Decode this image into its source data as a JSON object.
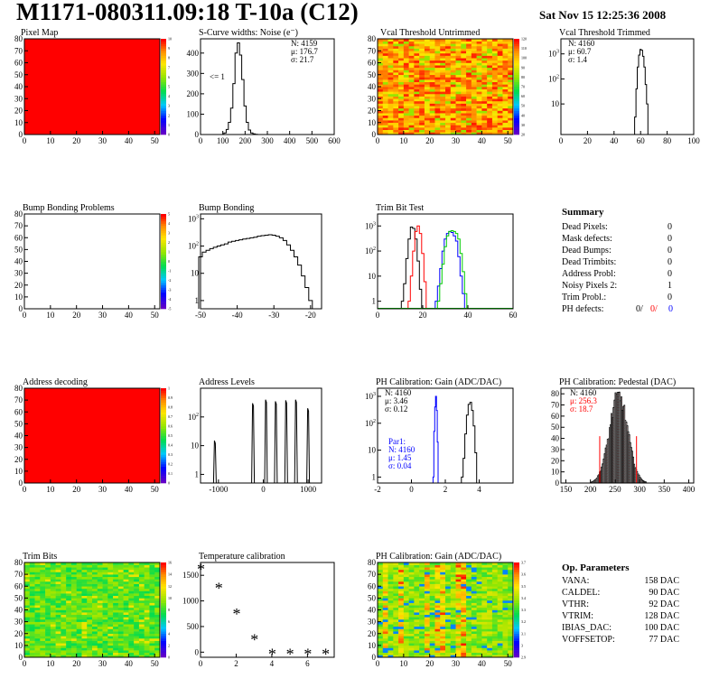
{
  "header": {
    "title": "M1171-080311.09:18 T-10a (C12)",
    "date": "Sat Nov 15 12:25:36 2008"
  },
  "colors": {
    "red": "#ff0000",
    "green": "#00cc00",
    "blue": "#0000ff",
    "black": "#000000",
    "pedestal_fill": "#cc3333"
  },
  "chart_data": [
    {
      "id": "pixel-map",
      "type": "heatmap",
      "title": "Pixel Map",
      "xlim": [
        0,
        52
      ],
      "ylim": [
        0,
        80
      ],
      "xticks": [
        0,
        10,
        20,
        30,
        40,
        50
      ],
      "yticks": [
        0,
        10,
        20,
        30,
        40,
        50,
        60,
        70,
        80
      ],
      "palette": "full-red",
      "zscale": [
        "0",
        "1",
        "2",
        "3",
        "4",
        "5",
        "6",
        "7",
        "8",
        "9",
        "10"
      ]
    },
    {
      "id": "scurve",
      "type": "line",
      "title": "S-Curve widths: Noise (e⁻)",
      "xlim": [
        0,
        600
      ],
      "ylim": [
        0,
        470
      ],
      "xticks": [
        0,
        100,
        200,
        300,
        400,
        500,
        600
      ],
      "yticks": [
        0,
        100,
        200,
        300,
        400
      ],
      "annotation": "<= 1",
      "stats": [
        {
          "label": "N: 4159",
          "color": "#000000"
        },
        {
          "label": "μ: 176.7",
          "color": "#000000"
        },
        {
          "label": "σ: 21.7",
          "color": "#000000"
        }
      ],
      "series": [
        {
          "color": "#000000",
          "x": [
            100,
            110,
            120,
            130,
            140,
            150,
            160,
            170,
            180,
            190,
            200,
            210,
            220,
            230,
            240,
            250,
            260
          ],
          "values": [
            0,
            8,
            25,
            60,
            130,
            250,
            400,
            450,
            390,
            270,
            140,
            60,
            22,
            8,
            3,
            1,
            0
          ]
        }
      ]
    },
    {
      "id": "vcal-untrimmed",
      "type": "heatmap",
      "title": "Vcal Threshold Untrimmed",
      "xlim": [
        0,
        52
      ],
      "ylim": [
        0,
        80
      ],
      "xticks": [
        0,
        10,
        20,
        30,
        40,
        50
      ],
      "yticks": [
        0,
        10,
        20,
        30,
        40,
        50,
        60,
        70,
        80
      ],
      "palette": "orange-noise",
      "zscale": [
        "20",
        "30",
        "40",
        "50",
        "60",
        "70",
        "80",
        "90",
        "100",
        "110",
        "120"
      ]
    },
    {
      "id": "vcal-trimmed",
      "type": "line",
      "title": "Vcal Threshold Trimmed",
      "xlim": [
        0,
        100
      ],
      "log": true,
      "ylog": [
        0.6,
        4000
      ],
      "xticks": [
        0,
        20,
        40,
        60,
        80,
        100
      ],
      "yticks": [
        10,
        100,
        1000
      ],
      "stats": [
        {
          "label": "N: 4160",
          "color": "#000000"
        },
        {
          "label": "μ: 60.7",
          "color": "#000000"
        },
        {
          "label": "σ: 1.4",
          "color": "#000000"
        }
      ],
      "series": [
        {
          "color": "#000000",
          "x": [
            56,
            57,
            58,
            59,
            60,
            61,
            62,
            63,
            64,
            65,
            66
          ],
          "values": [
            3,
            40,
            300,
            900,
            1500,
            1400,
            800,
            300,
            60,
            10,
            0.6
          ]
        }
      ]
    },
    {
      "id": "bump-problems",
      "type": "heatmap",
      "title": "Bump Bonding Problems",
      "xlim": [
        0,
        52
      ],
      "ylim": [
        0,
        80
      ],
      "xticks": [
        0,
        10,
        20,
        30,
        40,
        50
      ],
      "yticks": [
        0,
        10,
        20,
        30,
        40,
        50,
        60,
        70,
        80
      ],
      "palette": "empty",
      "zscale": [
        "-5",
        "-4",
        "-3",
        "-2",
        "-1",
        "0",
        "1",
        "2",
        "3",
        "4",
        "5"
      ]
    },
    {
      "id": "bump-bonding",
      "type": "line",
      "title": "Bump Bonding",
      "xlim": [
        -50,
        -17
      ],
      "log": true,
      "ylog": [
        0.5,
        1500
      ],
      "xticks": [
        -50,
        -40,
        -30,
        -20
      ],
      "yticks": [
        1,
        10,
        100,
        1000
      ],
      "series": [
        {
          "color": "#000000",
          "x": [
            -50,
            -49,
            -48,
            -47,
            -46,
            -45,
            -44,
            -43,
            -42,
            -41,
            -40,
            -39,
            -38,
            -37,
            -36,
            -35,
            -34,
            -33,
            -32,
            -31,
            -30,
            -29,
            -28,
            -27,
            -26,
            -25,
            -24,
            -23,
            -22,
            -21,
            -20,
            -19
          ],
          "values": [
            40,
            60,
            70,
            80,
            90,
            100,
            110,
            120,
            140,
            150,
            160,
            170,
            180,
            190,
            200,
            210,
            230,
            240,
            250,
            260,
            250,
            230,
            200,
            160,
            110,
            70,
            40,
            20,
            8,
            3,
            1,
            0.5
          ]
        }
      ]
    },
    {
      "id": "trim-bit-test",
      "type": "line",
      "title": "Trim Bit Test",
      "xlim": [
        0,
        60
      ],
      "log": true,
      "ylog": [
        0.5,
        3000
      ],
      "xticks": [
        0,
        20,
        40,
        60
      ],
      "yticks": [
        1,
        10,
        100,
        1000
      ],
      "series": [
        {
          "color": "#000000",
          "x": [
            11,
            12,
            13,
            14,
            15,
            16,
            17,
            18,
            19,
            20
          ],
          "values": [
            1,
            5,
            50,
            300,
            900,
            800,
            300,
            40,
            3,
            0.5
          ]
        },
        {
          "color": "#ff0000",
          "x": [
            14,
            15,
            16,
            17,
            18,
            19,
            20,
            21,
            22
          ],
          "values": [
            1,
            10,
            100,
            600,
            1000,
            500,
            80,
            6,
            0.5
          ]
        },
        {
          "color": "#0000ff",
          "x": [
            26,
            27,
            28,
            29,
            30,
            31,
            32,
            33,
            34,
            35,
            36,
            37,
            38,
            39
          ],
          "values": [
            1,
            4,
            20,
            100,
            300,
            500,
            600,
            550,
            400,
            250,
            60,
            10,
            2,
            0.5
          ]
        },
        {
          "color": "#00cc00",
          "x": [
            27,
            28,
            29,
            30,
            31,
            32,
            33,
            34,
            35,
            36,
            37,
            38,
            39,
            40
          ],
          "values": [
            1,
            5,
            30,
            150,
            400,
            600,
            650,
            600,
            500,
            300,
            80,
            15,
            2,
            0.5
          ]
        }
      ]
    },
    {
      "id": "address-decoding",
      "type": "heatmap",
      "title": "Address decoding",
      "xlim": [
        0,
        52
      ],
      "ylim": [
        0,
        80
      ],
      "xticks": [
        0,
        10,
        20,
        30,
        40,
        50
      ],
      "yticks": [
        0,
        10,
        20,
        30,
        40,
        50,
        60,
        70,
        80
      ],
      "palette": "full-red",
      "zscale": [
        "0",
        "0.1",
        "0.2",
        "0.3",
        "0.4",
        "0.5",
        "0.6",
        "0.7",
        "0.8",
        "0.9",
        "1"
      ]
    },
    {
      "id": "address-levels",
      "type": "line",
      "title": "Address Levels",
      "xlim": [
        -1400,
        1300
      ],
      "log": true,
      "ylog": [
        0.5,
        1000
      ],
      "xticks": [
        -1000,
        0,
        1000
      ],
      "yticks": [
        1,
        10,
        100
      ],
      "peaks": [
        -1080,
        -230,
        60,
        280,
        510,
        730,
        1000
      ],
      "peak_heights": [
        15,
        300,
        400,
        350,
        380,
        400,
        200
      ]
    },
    {
      "id": "ph-gain",
      "type": "line",
      "title": "PH Calibration: Gain (ADC/DAC)",
      "xlim": [
        -2,
        6
      ],
      "log": true,
      "ylog": [
        0.6,
        2000
      ],
      "xticks": [
        -2,
        0,
        2,
        4
      ],
      "yticks": [
        1,
        10,
        100,
        1000
      ],
      "stats": [
        {
          "label": "N: 4160",
          "color": "#000000"
        },
        {
          "label": "μ: 3.46",
          "color": "#000000"
        },
        {
          "label": "σ: 0.12",
          "color": "#000000"
        }
      ],
      "stats2": [
        {
          "label": "Par1:",
          "color": "#0000ff"
        },
        {
          "label": "N: 4160",
          "color": "#0000ff"
        },
        {
          "label": "μ: 1.45",
          "color": "#0000ff"
        },
        {
          "label": "σ: 0.04",
          "color": "#0000ff"
        }
      ],
      "series": [
        {
          "color": "#000000",
          "x": [
            3.0,
            3.1,
            3.2,
            3.3,
            3.4,
            3.5,
            3.6,
            3.7,
            3.8,
            3.9
          ],
          "values": [
            1,
            5,
            40,
            200,
            500,
            600,
            300,
            80,
            8,
            0.6
          ]
        },
        {
          "color": "#0000ff",
          "x": [
            1.3,
            1.35,
            1.4,
            1.45,
            1.5,
            1.55,
            1.6
          ],
          "values": [
            1,
            50,
            400,
            1000,
            300,
            20,
            0.6
          ]
        }
      ]
    },
    {
      "id": "ph-pedestal",
      "type": "bar",
      "title": "PH Calibration: Pedestal (DAC)",
      "xlim": [
        140,
        410
      ],
      "ylim": [
        0,
        85
      ],
      "xticks": [
        150,
        200,
        250,
        300,
        350,
        400
      ],
      "yticks": [
        0,
        10,
        20,
        30,
        40,
        50,
        60,
        70,
        80
      ],
      "stats": [
        {
          "label": "N: 4160",
          "color": "#000000"
        },
        {
          "label": "μ: 256.3",
          "color": "#ff0000"
        },
        {
          "label": "σ: 18.7",
          "color": "#ff0000"
        }
      ],
      "mean": 256.3,
      "sigma": 18.7,
      "peak": 78,
      "bin": 2
    },
    {
      "id": "trim-bits",
      "type": "heatmap",
      "title": "Trim Bits",
      "xlim": [
        0,
        52
      ],
      "ylim": [
        0,
        80
      ],
      "xticks": [
        0,
        10,
        20,
        30,
        40,
        50
      ],
      "yticks": [
        0,
        10,
        20,
        30,
        40,
        50,
        60,
        70,
        80
      ],
      "palette": "green-noise",
      "zscale": [
        "0",
        "2",
        "4",
        "6",
        "8",
        "10",
        "12",
        "14",
        "16"
      ]
    },
    {
      "id": "temperature-calibration",
      "type": "scatter",
      "title": "Temperature calibration",
      "xlim": [
        0,
        7.5
      ],
      "ylim": [
        -100,
        1750
      ],
      "xticks": [
        0,
        2,
        4,
        6
      ],
      "yticks": [
        0,
        500,
        1000,
        1500
      ],
      "series": [
        {
          "color": "#000000",
          "x": [
            0,
            1,
            2,
            3,
            4,
            5,
            6,
            7
          ],
          "values": [
            1650,
            1280,
            780,
            280,
            0,
            0,
            0,
            0
          ]
        }
      ]
    },
    {
      "id": "ph-gain-map",
      "type": "heatmap",
      "title": "PH Calibration: Gain (ADC/DAC)",
      "xlim": [
        0,
        52
      ],
      "ylim": [
        0,
        80
      ],
      "xticks": [
        0,
        10,
        20,
        30,
        40,
        50
      ],
      "yticks": [
        0,
        10,
        20,
        30,
        40,
        50,
        60,
        70,
        80
      ],
      "palette": "gain-stripes",
      "zscale": [
        "2.9",
        "3",
        "3.1",
        "3.2",
        "3.3",
        "3.4",
        "3.5",
        "3.6",
        "3.7"
      ]
    }
  ],
  "summary": {
    "title": "Summary",
    "rows": [
      {
        "label": "Dead Pixels:",
        "value": "0"
      },
      {
        "label": "Mask defects:",
        "value": "0"
      },
      {
        "label": "Dead Bumps:",
        "value": "0"
      },
      {
        "label": "Dead Trimbits:",
        "value": "0"
      },
      {
        "label": "Address Probl:",
        "value": "0"
      },
      {
        "label": "Noisy Pixels 2:",
        "value": "1"
      },
      {
        "label": "Trim Probl.:",
        "value": "0"
      }
    ],
    "ph_label": "PH defects:",
    "ph_values": [
      {
        "value": "0/",
        "color": "#000000"
      },
      {
        "value": "0/",
        "color": "#ff0000"
      },
      {
        "value": "0",
        "color": "#0000ff"
      }
    ]
  },
  "op_params": {
    "title": "Op. Parameters",
    "rows": [
      {
        "label": "VANA:",
        "value": "158 DAC"
      },
      {
        "label": "CALDEL:",
        "value": "90 DAC"
      },
      {
        "label": "VTHR:",
        "value": "92 DAC"
      },
      {
        "label": "VTRIM:",
        "value": "128 DAC"
      },
      {
        "label": "IBIAS_DAC:",
        "value": "100 DAC"
      },
      {
        "label": "VOFFSETOP:",
        "value": "77 DAC"
      }
    ]
  }
}
